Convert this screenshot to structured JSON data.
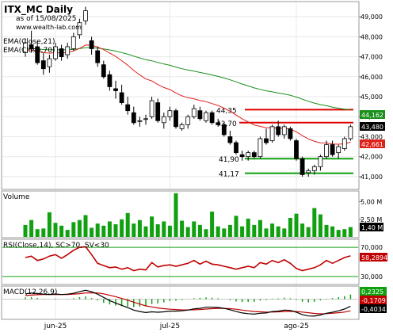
{
  "header": {
    "title": "ITX_MC Daily",
    "date_line": "as of 15/08/2025",
    "site": "www.wealth-lab.com"
  },
  "colors": {
    "ema21": "#e0201a",
    "ema70": "#1a8f1a",
    "hline_red": "#e00000",
    "hline_green": "#10a010",
    "volume": "#10a010",
    "rsi": "#c00000",
    "macd": "#000000",
    "signal": "#c00000",
    "hist": "#10a010"
  },
  "chart_data": [
    {
      "type": "candlestick",
      "panel": "price",
      "legend": [
        "EMA(Close,21)",
        "EMA(Close,70)"
      ],
      "y_ticks": [
        "49,000",
        "48,000",
        "47,000",
        "46,000",
        "45,000",
        "44,000",
        "43,000",
        "42,000",
        "41,000"
      ],
      "ylim": [
        40.6,
        49.6
      ],
      "x_ticks": [
        "jun-25",
        "jul-25",
        "ago-25"
      ],
      "level_labels": [
        "44,35",
        "43,70",
        "41,90",
        "41,17"
      ],
      "levels": [
        {
          "value": 44.35,
          "color": "red"
        },
        {
          "value": 43.7,
          "color": "red"
        },
        {
          "value": 41.9,
          "color": "green"
        },
        {
          "value": 41.17,
          "color": "green"
        }
      ],
      "last_values": [
        {
          "label": "44,162",
          "series": "EMA(Close,70)"
        },
        {
          "label": "43,480",
          "series": "Close"
        },
        {
          "label": "42,661",
          "series": "EMA(Close,21)"
        }
      ],
      "candles": [
        [
          47.2,
          47.9,
          47.0,
          47.7
        ],
        [
          47.6,
          48.3,
          47.2,
          47.4
        ],
        [
          47.5,
          47.8,
          46.6,
          46.7
        ],
        [
          46.8,
          47.2,
          46.1,
          46.4
        ],
        [
          46.5,
          47.1,
          46.2,
          46.9
        ],
        [
          46.9,
          47.7,
          46.8,
          47.5
        ],
        [
          47.4,
          47.6,
          46.8,
          47.0
        ],
        [
          47.1,
          47.7,
          46.9,
          47.5
        ],
        [
          47.4,
          48.2,
          47.3,
          48.0
        ],
        [
          48.1,
          48.9,
          47.9,
          48.7
        ],
        [
          48.8,
          49.5,
          48.6,
          49.3
        ],
        [
          47.8,
          48.0,
          47.1,
          47.4
        ],
        [
          47.3,
          47.5,
          46.5,
          46.7
        ],
        [
          46.6,
          46.8,
          45.9,
          46.0
        ],
        [
          46.1,
          46.3,
          45.3,
          45.5
        ],
        [
          45.4,
          45.8,
          44.9,
          45.3
        ],
        [
          45.2,
          45.6,
          44.6,
          44.7
        ],
        [
          44.6,
          45.0,
          44.1,
          44.3
        ],
        [
          44.2,
          44.5,
          43.6,
          43.7
        ],
        [
          43.8,
          44.0,
          43.5,
          43.8
        ],
        [
          43.9,
          44.1,
          43.6,
          43.9
        ],
        [
          44.0,
          45.0,
          43.9,
          44.8
        ],
        [
          44.7,
          44.9,
          43.7,
          43.8
        ],
        [
          43.7,
          44.2,
          43.4,
          44.0
        ],
        [
          44.0,
          44.5,
          43.8,
          44.3
        ],
        [
          44.3,
          44.4,
          43.4,
          43.5
        ],
        [
          43.4,
          43.7,
          43.3,
          43.6
        ],
        [
          43.6,
          44.1,
          43.4,
          44.0
        ],
        [
          44.0,
          44.6,
          43.9,
          44.4
        ],
        [
          44.3,
          44.5,
          43.8,
          43.9
        ],
        [
          43.8,
          44.3,
          43.7,
          44.2
        ],
        [
          44.2,
          44.3,
          43.6,
          43.7
        ],
        [
          43.7,
          43.9,
          43.5,
          43.6
        ],
        [
          43.6,
          43.7,
          43.0,
          43.1
        ],
        [
          43.0,
          43.3,
          42.6,
          42.7
        ],
        [
          42.7,
          42.8,
          42.1,
          42.2
        ],
        [
          42.1,
          42.3,
          41.8,
          42.0
        ],
        [
          42.0,
          42.3,
          41.8,
          42.2
        ],
        [
          42.2,
          42.3,
          41.9,
          42.0
        ],
        [
          42.0,
          43.0,
          41.9,
          42.9
        ],
        [
          42.9,
          43.4,
          42.6,
          42.7
        ],
        [
          42.8,
          43.6,
          42.7,
          43.5
        ],
        [
          43.5,
          43.8,
          43.0,
          43.1
        ],
        [
          43.1,
          43.6,
          42.9,
          43.5
        ],
        [
          43.4,
          43.5,
          42.8,
          42.9
        ],
        [
          42.8,
          42.9,
          41.8,
          41.9
        ],
        [
          41.9,
          42.0,
          41.0,
          41.1
        ],
        [
          41.2,
          41.4,
          41.0,
          41.3
        ],
        [
          41.3,
          41.6,
          41.1,
          41.5
        ],
        [
          41.5,
          42.1,
          41.3,
          42.0
        ],
        [
          42.0,
          42.8,
          41.9,
          42.6
        ],
        [
          42.6,
          42.8,
          42.0,
          42.1
        ],
        [
          42.2,
          42.6,
          41.9,
          42.5
        ],
        [
          42.4,
          43.0,
          42.3,
          42.9
        ],
        [
          42.9,
          43.6,
          42.8,
          43.5
        ]
      ]
    },
    {
      "type": "bar",
      "panel": "volume",
      "title": "Volume",
      "y_ticks": [
        "5,00 M",
        "2,50 M"
      ],
      "last_label": "1,40 M",
      "ylim": [
        0,
        6.3
      ],
      "values": [
        1.7,
        2.4,
        1.1,
        1.2,
        3.5,
        2.0,
        1.6,
        1.0,
        2.1,
        2.4,
        3.1,
        1.3,
        1.9,
        1.6,
        2.2,
        1.8,
        2.5,
        3.4,
        1.9,
        2.4,
        1.5,
        2.9,
        1.8,
        2.2,
        1.6,
        6.2,
        2.3,
        1.4,
        2.2,
        1.7,
        1.1,
        3.6,
        1.5,
        1.2,
        1.7,
        3.0,
        1.5,
        2.6,
        1.7,
        2.4,
        1.2,
        1.9,
        1.5,
        1.2,
        2.7,
        3.3,
        1.9,
        1.4,
        4.1,
        3.2,
        1.7,
        1.5,
        1.0,
        1.1,
        1.4
      ]
    },
    {
      "type": "line",
      "panel": "rsi",
      "title": "RSI(Close,14), SC>70, SV<30",
      "y_ticks": [
        "70,000",
        "30,000"
      ],
      "last_label": "58,2894",
      "ylim": [
        20,
        80
      ],
      "values": [
        56,
        58,
        52,
        54,
        58,
        60,
        55,
        60,
        66,
        70,
        71,
        60,
        48,
        45,
        42,
        43,
        40,
        42,
        38,
        40,
        39,
        49,
        43,
        45,
        46,
        44,
        46,
        48,
        52,
        47,
        51,
        47,
        46,
        44,
        42,
        40,
        42,
        44,
        42,
        49,
        47,
        52,
        49,
        53,
        48,
        41,
        38,
        40,
        42,
        46,
        52,
        48,
        52,
        56,
        58.3
      ]
    },
    {
      "type": "line",
      "panel": "macd",
      "title": "MACD(12,26,9)",
      "y_ticks": [
        "0,000"
      ],
      "last_labels": [
        "0,2325",
        "-0,1709",
        "-0,4034"
      ],
      "ylim": [
        -1.1,
        0.65
      ],
      "macd": [
        0.3,
        0.35,
        0.32,
        0.28,
        0.26,
        0.29,
        0.26,
        0.28,
        0.33,
        0.42,
        0.5,
        0.42,
        0.28,
        0.1,
        -0.08,
        -0.22,
        -0.35,
        -0.48,
        -0.62,
        -0.7,
        -0.76,
        -0.72,
        -0.74,
        -0.72,
        -0.68,
        -0.68,
        -0.66,
        -0.62,
        -0.55,
        -0.52,
        -0.46,
        -0.46,
        -0.47,
        -0.52,
        -0.6,
        -0.7,
        -0.78,
        -0.82,
        -0.85,
        -0.8,
        -0.78,
        -0.7,
        -0.68,
        -0.62,
        -0.64,
        -0.74,
        -0.88,
        -0.95,
        -0.96,
        -0.9,
        -0.8,
        -0.74,
        -0.66,
        -0.56,
        -0.4
      ],
      "signal": [
        0.2,
        0.23,
        0.25,
        0.26,
        0.26,
        0.26,
        0.26,
        0.26,
        0.28,
        0.31,
        0.35,
        0.36,
        0.35,
        0.3,
        0.22,
        0.14,
        0.04,
        -0.06,
        -0.17,
        -0.28,
        -0.38,
        -0.44,
        -0.5,
        -0.54,
        -0.57,
        -0.59,
        -0.61,
        -0.61,
        -0.6,
        -0.59,
        -0.56,
        -0.54,
        -0.52,
        -0.52,
        -0.54,
        -0.57,
        -0.62,
        -0.66,
        -0.7,
        -0.72,
        -0.73,
        -0.73,
        -0.72,
        -0.7,
        -0.69,
        -0.7,
        -0.73,
        -0.77,
        -0.81,
        -0.83,
        -0.82,
        -0.8,
        -0.77,
        -0.73,
        -0.66
      ]
    }
  ]
}
